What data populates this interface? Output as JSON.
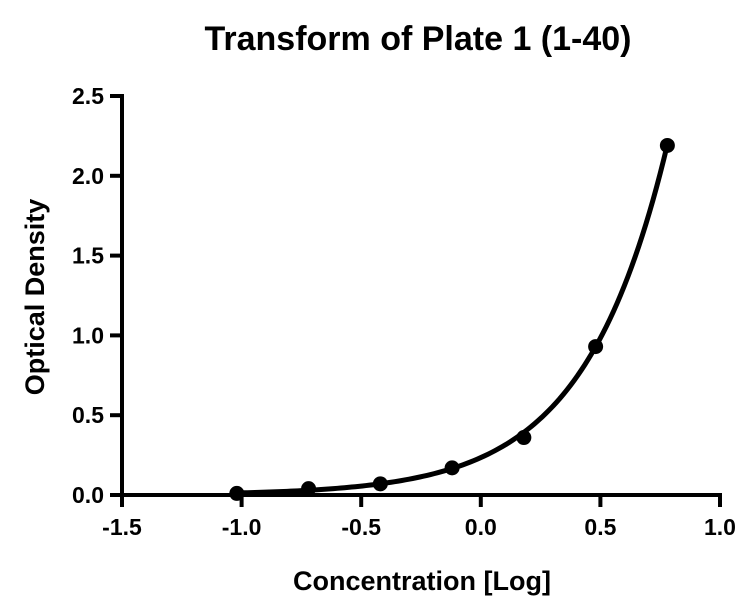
{
  "chart_data": {
    "type": "scatter",
    "title": "Transform of Plate 1 (1-40)",
    "xlabel": "Concentration [Log]",
    "ylabel": "Optical Density",
    "xlim": [
      -1.5,
      1.0
    ],
    "ylim": [
      0.0,
      2.5
    ],
    "x_ticks": [
      "-1.5",
      "-1.0",
      "-0.5",
      "0.0",
      "0.5",
      "1.0"
    ],
    "y_ticks": [
      "0.0",
      "0.5",
      "1.0",
      "1.5",
      "2.0",
      "2.5"
    ],
    "grid": false,
    "legend": "none",
    "series": [
      {
        "points": [
          {
            "x": -1.02,
            "y": 0.01
          },
          {
            "x": -0.72,
            "y": 0.04
          },
          {
            "x": -0.42,
            "y": 0.07
          },
          {
            "x": -0.12,
            "y": 0.17
          },
          {
            "x": 0.18,
            "y": 0.36
          },
          {
            "x": 0.48,
            "y": 0.93
          },
          {
            "x": 0.78,
            "y": 2.19
          }
        ]
      }
    ],
    "fit_curve": {
      "style": "smooth",
      "color": "#000000",
      "x_range": [
        -1.02,
        0.78
      ]
    }
  }
}
